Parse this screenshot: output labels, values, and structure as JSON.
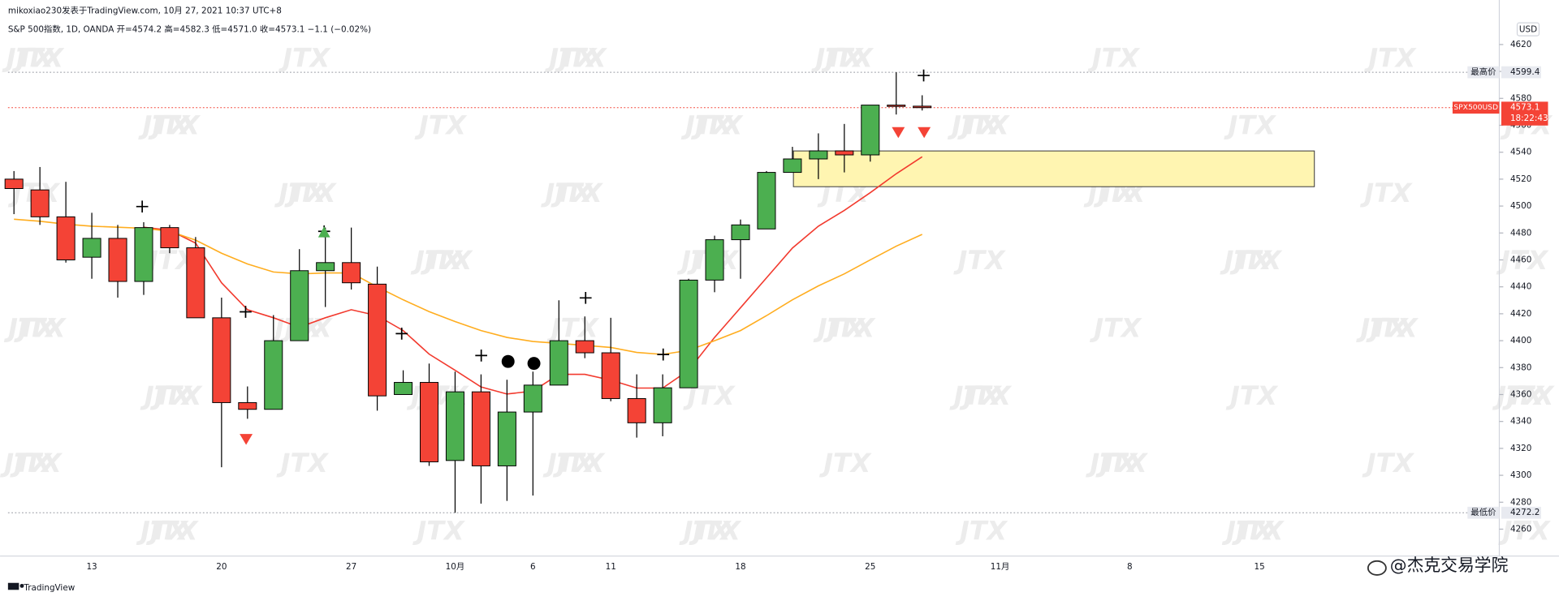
{
  "chart_data": {
    "type": "candlestick",
    "author_line": "mikoxiao230发表于TradingView.com, 10月 27, 2021 10:37 UTC+8",
    "symbol_line": "S&P 500指数, 1D, OANDA  开=4574.2  高=4582.3  低=4571.0  收=4573.1  −1.1 (−0.02%)",
    "currency": "USD",
    "watermark": "JTX",
    "footer": "TradingView",
    "brand": "@杰克交易学院",
    "categories": [
      null,
      null,
      null,
      "13",
      null,
      null,
      null,
      null,
      "20",
      null,
      null,
      null,
      null,
      "27",
      null,
      null,
      null,
      "10月",
      null,
      null,
      "6",
      null,
      null,
      "11",
      null,
      null,
      null,
      null,
      "18",
      null,
      null,
      null,
      null,
      "25",
      null,
      null,
      null,
      null,
      "11月",
      null,
      null,
      null,
      null,
      "8",
      null,
      null,
      null,
      null,
      "15",
      null,
      null,
      null,
      null,
      null,
      null,
      null,
      null
    ],
    "open": [
      4520,
      4512,
      4492,
      4462,
      4476,
      4444,
      4484,
      4469,
      4417,
      4354,
      4349,
      4400,
      4452,
      4458,
      4442,
      4360,
      4369,
      4311,
      4362,
      4307,
      4347,
      4367,
      4400,
      4391,
      4357,
      4339,
      4365,
      4445,
      4475,
      4483,
      4525,
      4535,
      4541,
      4538,
      4575,
      4574.2,
      null,
      null,
      null,
      null,
      null,
      null,
      null,
      null,
      null,
      null,
      null,
      null,
      null,
      null,
      null,
      null,
      null,
      null,
      null,
      null,
      null
    ],
    "high": [
      4526,
      4529,
      4518,
      4495,
      4486,
      4488,
      4486,
      4477,
      4432,
      4366,
      4419,
      4468,
      4484,
      4484,
      4455,
      4378,
      4383,
      4377,
      4375,
      4371,
      4377,
      4430,
      4418,
      4417,
      4375,
      4375,
      4446,
      4478,
      4490,
      4526,
      4544,
      4554,
      4561,
      4575,
      4599.4,
      4582.3,
      null,
      null,
      null,
      null,
      null,
      null,
      null,
      null,
      null,
      null,
      null,
      null,
      null,
      null,
      null,
      null,
      null,
      null,
      null,
      null,
      null
    ],
    "low": [
      4494,
      4486,
      4458,
      4446,
      4432,
      4434,
      4465,
      4417,
      4306,
      4342,
      4349,
      4400,
      4425,
      4438,
      4348,
      4360,
      4307,
      4272.2,
      4279,
      4281,
      4285,
      4367,
      4387,
      4355,
      4328,
      4329,
      4365,
      4436,
      4446,
      4483,
      4525,
      4520,
      4525,
      4533,
      4568,
      4571.0,
      null,
      null,
      null,
      null,
      null,
      null,
      null,
      null,
      null,
      null,
      null,
      null,
      null,
      null,
      null,
      null,
      null,
      null,
      null,
      null,
      null
    ],
    "close": [
      4513,
      4492,
      4460,
      4476,
      4444,
      4484,
      4469,
      4417,
      4354,
      4349,
      4400,
      4452,
      4458,
      4443,
      4359,
      4369,
      4310,
      4362,
      4307,
      4347,
      4367,
      4400,
      4391,
      4357,
      4339,
      4365,
      4445,
      4475,
      4486,
      4525,
      4535,
      4541,
      4538,
      4575,
      4574,
      4573.1,
      null,
      null,
      null,
      null,
      null,
      null,
      null,
      null,
      null,
      null,
      null,
      null,
      null,
      null,
      null,
      null,
      null,
      null,
      null,
      null,
      null
    ],
    "up_color": "#4caf50",
    "down_color": "#f44336",
    "moving_averages": [
      {
        "color": "#f23a2e",
        "values": [
          null,
          null,
          null,
          null,
          null,
          4484.3,
          4482,
          4472.5,
          4443,
          4423,
          4417,
          4410,
          4417,
          4423,
          4418.6,
          4407.5,
          4390,
          4378,
          4365.6,
          4360.4,
          4362.6,
          4375,
          4375,
          4370.7,
          4364.8,
          4364.8,
          4378,
          4402.4,
          4424.5,
          4446.7,
          4468.8,
          4485,
          4496.8,
          4510,
          4524,
          4536.6,
          null,
          null,
          null,
          null,
          null,
          null,
          null,
          null,
          null,
          null,
          null,
          null,
          null,
          null,
          null,
          null,
          null,
          null,
          null,
          null,
          null
        ]
      },
      {
        "color": "#ffad1f",
        "values": [
          4490.2,
          4488.7,
          4486.5,
          4485,
          4484.3,
          4483.5,
          4481.3,
          4474.7,
          4465,
          4457,
          4451,
          4449.6,
          4450.3,
          4450.3,
          4440,
          4430.4,
          4421.6,
          4414.2,
          4407.5,
          4402.4,
          4399.4,
          4398,
          4396.5,
          4395,
          4391.3,
          4389.8,
          4392.8,
          4400,
          4407.5,
          4418.6,
          4430.4,
          4440.7,
          4449.6,
          4460,
          4470.2,
          4479,
          null,
          null,
          null,
          null,
          null,
          null,
          null,
          null,
          null,
          null,
          null,
          null,
          null,
          null,
          null,
          null,
          null,
          null,
          null,
          null,
          null
        ]
      }
    ],
    "ylim": [
      4240,
      4642
    ],
    "yticks": [
      4260,
      4280,
      4300,
      4320,
      4340,
      4360,
      4380,
      4400,
      4420,
      4440,
      4460,
      4480,
      4500,
      4520,
      4540,
      4560,
      4580,
      4600,
      4620
    ],
    "grid": false,
    "price_lines": {
      "high": {
        "label": "最高价",
        "value": 4599.4
      },
      "low": {
        "label": "最低价",
        "value": 4272.2
      },
      "last": {
        "label": "SPX500USD",
        "value": 4573.1,
        "countdown": "18:22:43"
      }
    }
  }
}
